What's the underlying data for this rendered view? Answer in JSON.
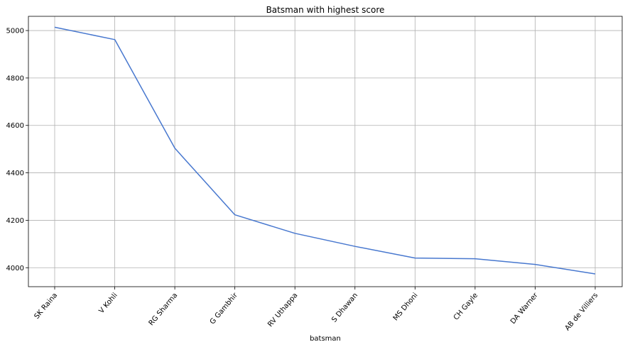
{
  "chart_data": {
    "type": "line",
    "title": "Batsman with highest score",
    "xlabel": "batsman",
    "ylabel": "",
    "categories": [
      "SK Raina",
      "V Kohli",
      "RG Sharma",
      "G Gambhir",
      "RV Uthappa",
      "S Dhawan",
      "MS Dhoni",
      "CH Gayle",
      "DA Warner",
      "AB de Villiers"
    ],
    "series": [
      {
        "values": [
          5014,
          4962,
          4504,
          4223,
          4145,
          4090,
          4041,
          4038,
          4014,
          3974
        ]
      }
    ],
    "ylim": [
      3920,
      5060
    ],
    "yticks": [
      4000,
      4200,
      4400,
      4600,
      4800,
      5000
    ],
    "grid": true,
    "line_color": "#4878cf"
  }
}
